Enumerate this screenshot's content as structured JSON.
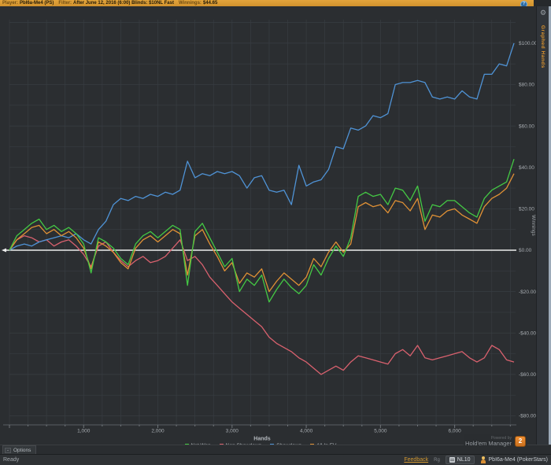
{
  "title_bar": {
    "player_label": "Player:",
    "player": "PbI6a-Me4 (PS)",
    "filter_label": "Filter:",
    "filter": "After June 12, 2016 (6:00) Blinds: $10NL Fast",
    "winnings_label": "Winnings:",
    "winnings": "$44.65",
    "help_icon": "?"
  },
  "right_panel": {
    "tab_label": "Graphed Hands",
    "gear_icon": "⚙"
  },
  "footer": {
    "powered_by": "Powered by",
    "brand": "Hold'em Manager",
    "brand_badge": "2",
    "collapse_glyph": "-",
    "options_label": "Options",
    "status_text": "Ready",
    "feedback_link": "Feedback",
    "mini_label": "Rg",
    "stake_label": "NL10",
    "player_label": "PbI6a-Me4 (PokerStars)"
  },
  "chart_data": {
    "type": "line",
    "title": "",
    "xlabel": "Hands",
    "ylabel": "Winnings",
    "xlim": [
      0,
      6870
    ],
    "ylim": [
      -88,
      112
    ],
    "grid": {
      "x_minor": 250,
      "y_minor": 10,
      "color": "#383d42"
    },
    "zero_line_color": "#ededed",
    "axis_color": "#5a5f64",
    "tick_color": "#70757a",
    "label_color": "#a6abb0",
    "x_ticks": [
      {
        "v": 1000,
        "label": "1,000"
      },
      {
        "v": 2000,
        "label": "2,000"
      },
      {
        "v": 3000,
        "label": "3,000"
      },
      {
        "v": 4000,
        "label": "4,000"
      },
      {
        "v": 5000,
        "label": "5,000"
      },
      {
        "v": 6000,
        "label": "6,000"
      }
    ],
    "y_ticks": [
      {
        "v": 100,
        "label": "$100.00"
      },
      {
        "v": 80,
        "label": "$80.00"
      },
      {
        "v": 60,
        "label": "$60.00"
      },
      {
        "v": 40,
        "label": "$40.00"
      },
      {
        "v": 20,
        "label": "$20.00"
      },
      {
        "v": 0,
        "label": "$0.00"
      },
      {
        "v": -20,
        "label": "-$20.00"
      },
      {
        "v": -40,
        "label": "-$40.00"
      },
      {
        "v": -60,
        "label": "-$60.00"
      },
      {
        "v": -80,
        "label": "-$80.00"
      }
    ],
    "x": [
      0,
      100,
      200,
      300,
      400,
      500,
      600,
      700,
      800,
      900,
      1000,
      1100,
      1200,
      1300,
      1400,
      1500,
      1600,
      1700,
      1800,
      1900,
      2000,
      2100,
      2200,
      2300,
      2400,
      2500,
      2600,
      2700,
      2800,
      2900,
      3000,
      3100,
      3200,
      3300,
      3400,
      3500,
      3600,
      3700,
      3800,
      3900,
      4000,
      4100,
      4200,
      4300,
      4400,
      4500,
      4600,
      4700,
      4800,
      4900,
      5000,
      5100,
      5200,
      5300,
      5400,
      5500,
      5600,
      5700,
      5800,
      5900,
      6000,
      6100,
      6200,
      6300,
      6400,
      6500,
      6600,
      6700,
      6800
    ],
    "draw_order": [
      1,
      2,
      3,
      0
    ],
    "series": [
      {
        "name": "Net Won",
        "color": "#44c944",
        "values": [
          0,
          7,
          10,
          13,
          15,
          10,
          12,
          9,
          11,
          8,
          3,
          -11,
          6,
          4,
          1,
          -4,
          -7,
          3,
          7,
          9,
          6,
          9,
          12,
          10,
          -17,
          9,
          13,
          6,
          -1,
          -8,
          -4,
          -20,
          -14,
          -17,
          -12,
          -25,
          -19,
          -14,
          -18,
          -21,
          -17,
          -7,
          -12,
          -4,
          2,
          -3,
          6,
          26,
          28,
          26,
          27,
          22,
          30,
          29,
          24,
          31,
          14,
          22,
          21,
          24,
          24,
          21,
          18,
          16,
          25,
          29,
          31,
          33,
          44
        ]
      },
      {
        "name": "Non Showdown",
        "color": "#d9616e",
        "values": [
          0,
          5,
          7,
          6,
          4,
          5,
          2,
          4,
          5,
          2,
          -2,
          -8,
          2,
          4,
          -1,
          -5,
          -8,
          -5,
          -3,
          -6,
          -5,
          -3,
          1,
          5,
          -5,
          -3,
          -7,
          -13,
          -17,
          -21,
          -25,
          -28,
          -31,
          -34,
          -37,
          -42,
          -45,
          -47,
          -49,
          -52,
          -54,
          -57,
          -60,
          -58,
          -56,
          -58,
          -54,
          -51,
          -52,
          -53,
          -54,
          -55,
          -50,
          -48,
          -51,
          -46,
          -52,
          -53,
          -52,
          -51,
          -50,
          -49,
          -52,
          -54,
          -52,
          -46,
          -48,
          -53,
          -54
        ]
      },
      {
        "name": "Showdown",
        "color": "#4f93d6",
        "values": [
          0,
          2,
          3,
          2,
          4,
          5,
          6,
          7,
          6,
          8,
          5,
          3,
          10,
          14,
          22,
          25,
          24,
          26,
          25,
          27,
          26,
          28,
          27,
          29,
          43,
          35,
          37,
          36,
          38,
          37,
          38,
          36,
          30,
          35,
          36,
          29,
          28,
          29,
          22,
          41,
          31,
          33,
          34,
          39,
          50,
          49,
          59,
          58,
          60,
          65,
          64,
          66,
          80,
          81,
          81,
          82,
          81,
          74,
          73,
          74,
          73,
          77,
          74,
          73,
          85,
          85,
          90,
          89,
          100
        ]
      },
      {
        "name": "All-In EV",
        "color": "#e09135",
        "values": [
          0,
          5,
          8,
          11,
          12,
          8,
          10,
          7,
          9,
          6,
          1,
          -9,
          4,
          2,
          -1,
          -6,
          -9,
          1,
          5,
          7,
          4,
          7,
          10,
          8,
          -12,
          7,
          10,
          3,
          -3,
          -10,
          -6,
          -16,
          -11,
          -13,
          -9,
          -20,
          -15,
          -11,
          -14,
          -17,
          -13,
          -4,
          -8,
          -1,
          4,
          -1,
          3,
          21,
          23,
          21,
          22,
          18,
          24,
          23,
          19,
          25,
          10,
          17,
          16,
          19,
          20,
          17,
          15,
          13,
          21,
          25,
          27,
          30,
          37
        ]
      }
    ],
    "legend_position": "bottom"
  }
}
